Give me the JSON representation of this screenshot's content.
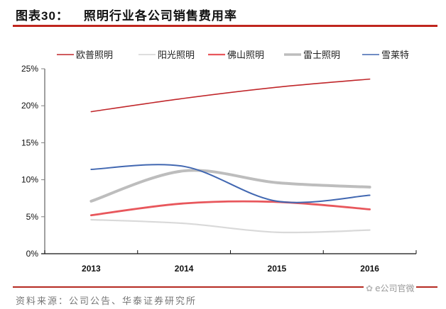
{
  "header": {
    "figure_label": "图表30：",
    "title": "照明行业各公司销售费用率"
  },
  "footer": {
    "source": "资料来源：公司公告、华泰证券研究所",
    "watermark_text": "e公司官微",
    "watermark_icon": "wechat-icon"
  },
  "chart_data": {
    "type": "line",
    "title": "照明行业各公司销售费用率",
    "xlabel": "",
    "ylabel": "",
    "categories": [
      "2013",
      "2014",
      "2015",
      "2016"
    ],
    "ylim": [
      0,
      25
    ],
    "yticks": [
      0,
      5,
      10,
      15,
      20,
      25
    ],
    "ytick_labels": [
      "0%",
      "5%",
      "10%",
      "15%",
      "20%",
      "25%"
    ],
    "grid": false,
    "smooth": true,
    "legend_position": "top",
    "series": [
      {
        "name": "欧普照明",
        "color": "#c0262a",
        "width": 1.6,
        "values": [
          19.2,
          21.0,
          22.5,
          23.6
        ]
      },
      {
        "name": "阳光照明",
        "color": "#d9d9d9",
        "width": 2.2,
        "values": [
          4.6,
          4.1,
          2.9,
          3.2
        ]
      },
      {
        "name": "佛山照明",
        "color": "#e8575c",
        "width": 2.8,
        "values": [
          5.2,
          6.8,
          7.0,
          6.0
        ]
      },
      {
        "name": "雷士照明",
        "color": "#bdbdbd",
        "width": 4.0,
        "values": [
          7.1,
          11.2,
          9.6,
          9.0
        ]
      },
      {
        "name": "雪莱特",
        "color": "#4167b1",
        "width": 2.0,
        "values": [
          11.4,
          11.8,
          7.1,
          7.9
        ]
      }
    ]
  }
}
